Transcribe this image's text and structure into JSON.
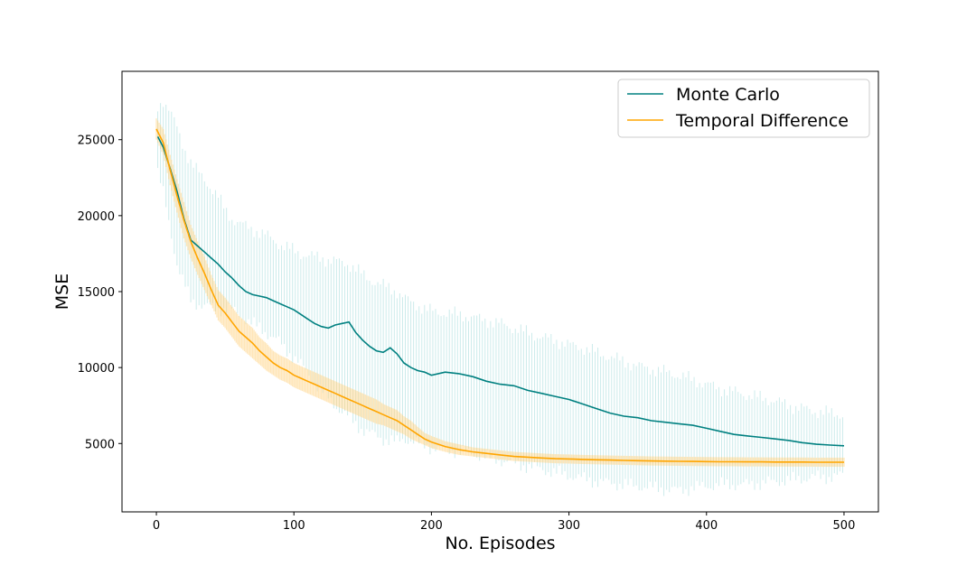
{
  "chart_data": {
    "type": "line",
    "xlabel": "No. Episodes",
    "ylabel": "MSE",
    "xlim": [
      -25,
      525
    ],
    "ylim": [
      500,
      29500
    ],
    "xticks": [
      0,
      100,
      200,
      300,
      400,
      500
    ],
    "yticks": [
      5000,
      10000,
      15000,
      20000,
      25000
    ],
    "legend_position": "top-right",
    "grid": false,
    "series": [
      {
        "name": "Monte Carlo",
        "color": "#008080",
        "band_color": "#b0e0e0",
        "x": [
          1,
          5,
          10,
          15,
          20,
          25,
          30,
          35,
          40,
          45,
          50,
          55,
          60,
          65,
          70,
          75,
          80,
          85,
          90,
          95,
          100,
          105,
          110,
          115,
          120,
          125,
          130,
          135,
          140,
          145,
          150,
          155,
          160,
          165,
          170,
          175,
          180,
          185,
          190,
          195,
          200,
          210,
          220,
          230,
          240,
          250,
          260,
          270,
          280,
          290,
          300,
          310,
          320,
          330,
          340,
          350,
          360,
          370,
          380,
          390,
          400,
          410,
          420,
          430,
          440,
          450,
          460,
          470,
          480,
          490,
          500
        ],
        "mean": [
          25200,
          24500,
          23100,
          21600,
          19800,
          18400,
          18000,
          17600,
          17200,
          16800,
          16300,
          15900,
          15400,
          15000,
          14800,
          14700,
          14600,
          14400,
          14200,
          14000,
          13800,
          13500,
          13200,
          12900,
          12700,
          12600,
          12800,
          12900,
          13000,
          12300,
          11800,
          11400,
          11100,
          11000,
          11300,
          10900,
          10300,
          10000,
          9800,
          9700,
          9500,
          9700,
          9600,
          9400,
          9100,
          8900,
          8800,
          8500,
          8300,
          8100,
          7900,
          7600,
          7300,
          7000,
          6800,
          6700,
          6500,
          6400,
          6300,
          6200,
          6000,
          5800,
          5600,
          5500,
          5400,
          5300,
          5200,
          5050,
          4950,
          4900,
          4850
        ],
        "lower": [
          22800,
          21500,
          19200,
          16800,
          15500,
          14500,
          14200,
          14000,
          14000,
          13900,
          13800,
          13800,
          13500,
          13200,
          12900,
          12600,
          12300,
          12000,
          11600,
          11100,
          10700,
          10200,
          9600,
          9000,
          8500,
          8000,
          7500,
          7100,
          6700,
          6300,
          5900,
          5700,
          5500,
          5300,
          5200,
          5100,
          5300,
          5200,
          5000,
          4900,
          4700,
          4600,
          4500,
          4300,
          4100,
          3900,
          3700,
          3500,
          3300,
          3100,
          2900,
          2700,
          2500,
          2400,
          2300,
          2200,
          2100,
          2000,
          1900,
          2100,
          2200,
          2300,
          2300,
          2300,
          2400,
          2500,
          2600,
          2700,
          2800,
          2800,
          2900
        ],
        "upper": [
          27200,
          27600,
          26800,
          25800,
          24500,
          23500,
          22900,
          22400,
          21800,
          21200,
          20400,
          19800,
          19500,
          19300,
          19100,
          18900,
          18700,
          18400,
          18100,
          17900,
          17700,
          17500,
          17400,
          17300,
          17200,
          17100,
          17000,
          16900,
          16800,
          16500,
          16100,
          15800,
          15600,
          15400,
          15200,
          15000,
          14600,
          14300,
          14100,
          13900,
          13700,
          13600,
          13500,
          13300,
          13100,
          12900,
          12600,
          12300,
          12000,
          11800,
          11500,
          11300,
          11000,
          10700,
          10400,
          10100,
          9900,
          9700,
          9500,
          9200,
          8900,
          8600,
          8400,
          8200,
          8000,
          7800,
          7500,
          7300,
          7100,
          7000,
          6900
        ]
      },
      {
        "name": "Temporal Difference",
        "color": "#ffa500",
        "band_color": "#ffd27f",
        "x": [
          0,
          5,
          10,
          15,
          20,
          25,
          30,
          35,
          40,
          45,
          50,
          55,
          60,
          65,
          70,
          75,
          80,
          85,
          90,
          95,
          100,
          105,
          110,
          115,
          120,
          125,
          130,
          135,
          140,
          145,
          150,
          155,
          160,
          165,
          170,
          175,
          180,
          185,
          190,
          195,
          200,
          210,
          220,
          230,
          240,
          250,
          260,
          270,
          280,
          290,
          300,
          310,
          320,
          330,
          340,
          350,
          360,
          370,
          380,
          390,
          400,
          410,
          420,
          430,
          440,
          450,
          460,
          470,
          480,
          490,
          500
        ],
        "mean": [
          25700,
          24800,
          23000,
          21300,
          19700,
          18300,
          17200,
          16200,
          15100,
          14100,
          13600,
          13000,
          12400,
          12000,
          11600,
          11100,
          10700,
          10300,
          10000,
          9800,
          9500,
          9300,
          9100,
          8900,
          8700,
          8500,
          8300,
          8100,
          7900,
          7700,
          7500,
          7300,
          7100,
          6900,
          6700,
          6500,
          6200,
          5900,
          5600,
          5300,
          5100,
          4800,
          4600,
          4450,
          4350,
          4250,
          4150,
          4100,
          4050,
          4000,
          3980,
          3950,
          3930,
          3910,
          3890,
          3870,
          3850,
          3840,
          3830,
          3820,
          3810,
          3800,
          3800,
          3790,
          3790,
          3780,
          3780,
          3780,
          3770,
          3770,
          3770
        ],
        "lower": [
          25000,
          24000,
          22000,
          20200,
          18500,
          17200,
          16100,
          15100,
          14100,
          13100,
          12600,
          12000,
          11400,
          11000,
          10600,
          10200,
          9800,
          9500,
          9200,
          9000,
          8700,
          8500,
          8300,
          8100,
          7900,
          7700,
          7500,
          7300,
          7100,
          6900,
          6700,
          6500,
          6300,
          6200,
          6000,
          5800,
          5600,
          5300,
          5100,
          4900,
          4700,
          4450,
          4250,
          4150,
          4050,
          3950,
          3850,
          3800,
          3750,
          3700,
          3680,
          3650,
          3630,
          3610,
          3590,
          3570,
          3550,
          3540,
          3530,
          3520,
          3510,
          3500,
          3500,
          3490,
          3490,
          3480,
          3480,
          3480,
          3470,
          3470,
          3470
        ],
        "upper": [
          26400,
          25700,
          24000,
          22400,
          20900,
          19400,
          18300,
          17300,
          16100,
          15100,
          14600,
          14000,
          13400,
          13000,
          12600,
          12000,
          11600,
          11100,
          10800,
          10600,
          10300,
          10100,
          9900,
          9700,
          9500,
          9300,
          9100,
          8900,
          8700,
          8500,
          8300,
          8100,
          7900,
          7600,
          7400,
          7200,
          6800,
          6500,
          6100,
          5700,
          5500,
          5150,
          4950,
          4750,
          4650,
          4550,
          4450,
          4400,
          4350,
          4300,
          4280,
          4250,
          4230,
          4210,
          4190,
          4170,
          4150,
          4140,
          4130,
          4120,
          4110,
          4100,
          4100,
          4090,
          4090,
          4080,
          4080,
          4080,
          4070,
          4070,
          4070
        ]
      }
    ]
  }
}
